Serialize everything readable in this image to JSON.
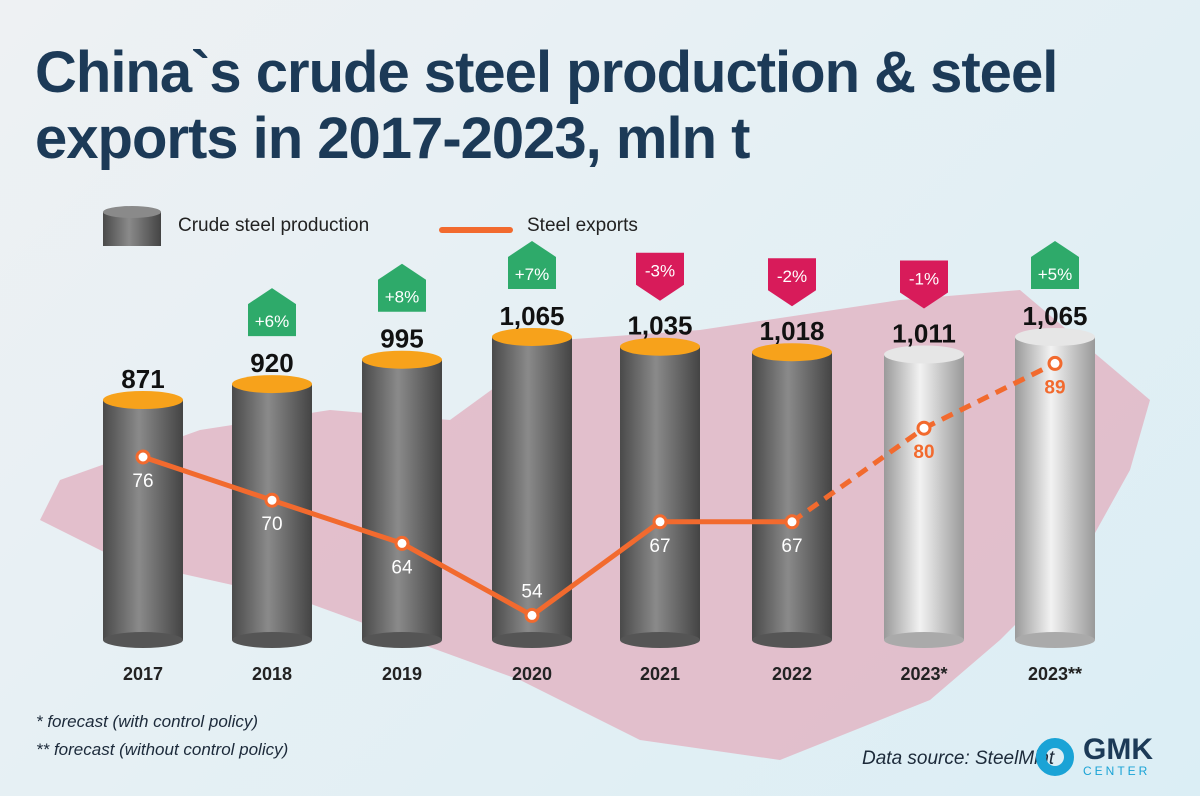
{
  "chart_data": {
    "type": "bar",
    "title": "China`s crude steel production & steel exports in 2017-2023, mln t",
    "categories": [
      "2017",
      "2018",
      "2019",
      "2020",
      "2021",
      "2022",
      "2023*",
      "2023**"
    ],
    "series": [
      {
        "name": "Crude steel production",
        "type": "bar",
        "values": [
          871,
          920,
          995,
          1065,
          1035,
          1018,
          1011,
          1065
        ],
        "labels": [
          "871",
          "920",
          "995",
          "1,065",
          "1,035",
          "1,018",
          "1,011",
          "1,065"
        ]
      },
      {
        "name": "Steel exports",
        "type": "line",
        "values": [
          76,
          70,
          64,
          54,
          67,
          67,
          80,
          89
        ],
        "forecast_from_index": 5
      }
    ],
    "changes": [
      "",
      "+6%",
      "+8%",
      "+7%",
      "-3%",
      "-2%",
      "-1%",
      "+5%"
    ],
    "footnotes": [
      "*  forecast (with control policy)",
      "**  forecast (without control policy)"
    ],
    "source": "Data source: SteelMint",
    "colors": {
      "bar": "#6a6a6a",
      "forecast_bar": "#c8c8c8",
      "line": "#f26a2e",
      "up": "#2eaa6a",
      "down": "#d81b5a",
      "title": "#1c3a57"
    }
  },
  "logo": {
    "name": "GMK",
    "sub": "CENTER"
  }
}
